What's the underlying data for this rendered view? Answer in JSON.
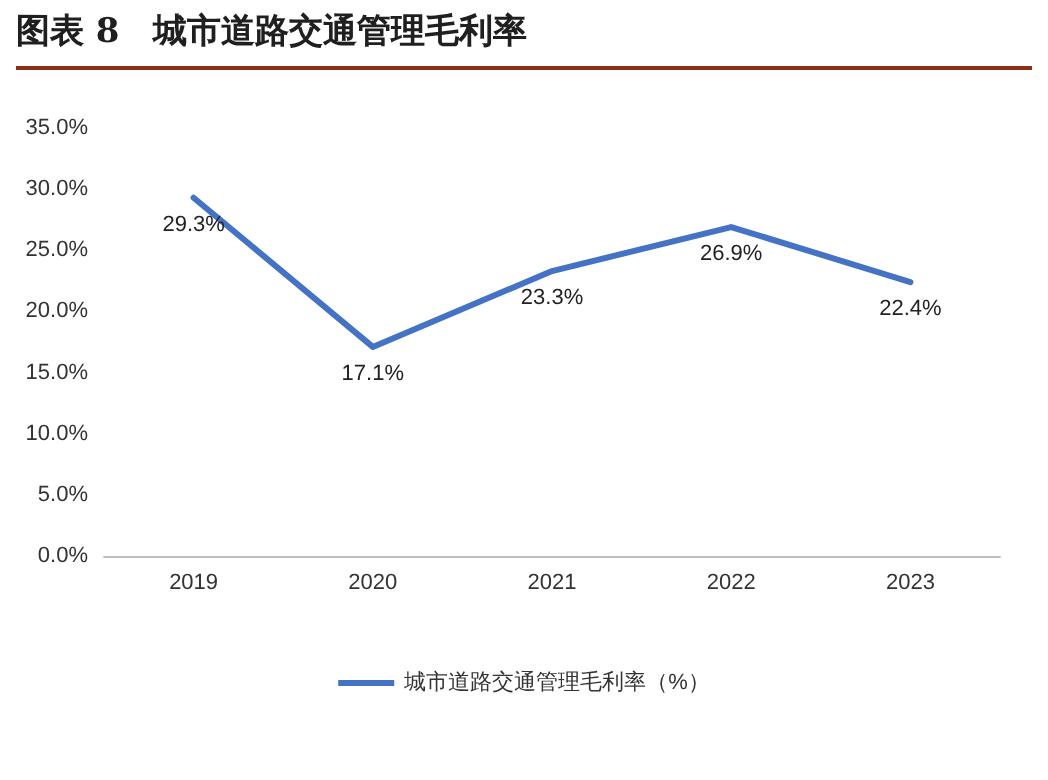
{
  "chart_data": {
    "type": "line",
    "title": "图表 8　城市道路交通管理毛利率",
    "categories": [
      "2019",
      "2020",
      "2021",
      "2022",
      "2023"
    ],
    "series": [
      {
        "name": "城市道路交通管理毛利率（%）",
        "color": "#4472c4",
        "values": [
          29.3,
          17.1,
          23.3,
          26.9,
          22.4
        ],
        "value_labels": [
          "29.3%",
          "17.1%",
          "23.3%",
          "26.9%",
          "22.4%"
        ]
      }
    ],
    "ylim": [
      0,
      35
    ],
    "yticks": [
      {
        "value": 0,
        "label": "0.0%"
      },
      {
        "value": 5,
        "label": "5.0%"
      },
      {
        "value": 10,
        "label": "10.0%"
      },
      {
        "value": 15,
        "label": "15.0%"
      },
      {
        "value": 20,
        "label": "20.0%"
      },
      {
        "value": 25,
        "label": "25.0%"
      },
      {
        "value": 30,
        "label": "30.0%"
      },
      {
        "value": 35,
        "label": "35.0%"
      }
    ],
    "grid": false,
    "legend": "bottom",
    "marker": "none",
    "line_style": "solid"
  }
}
